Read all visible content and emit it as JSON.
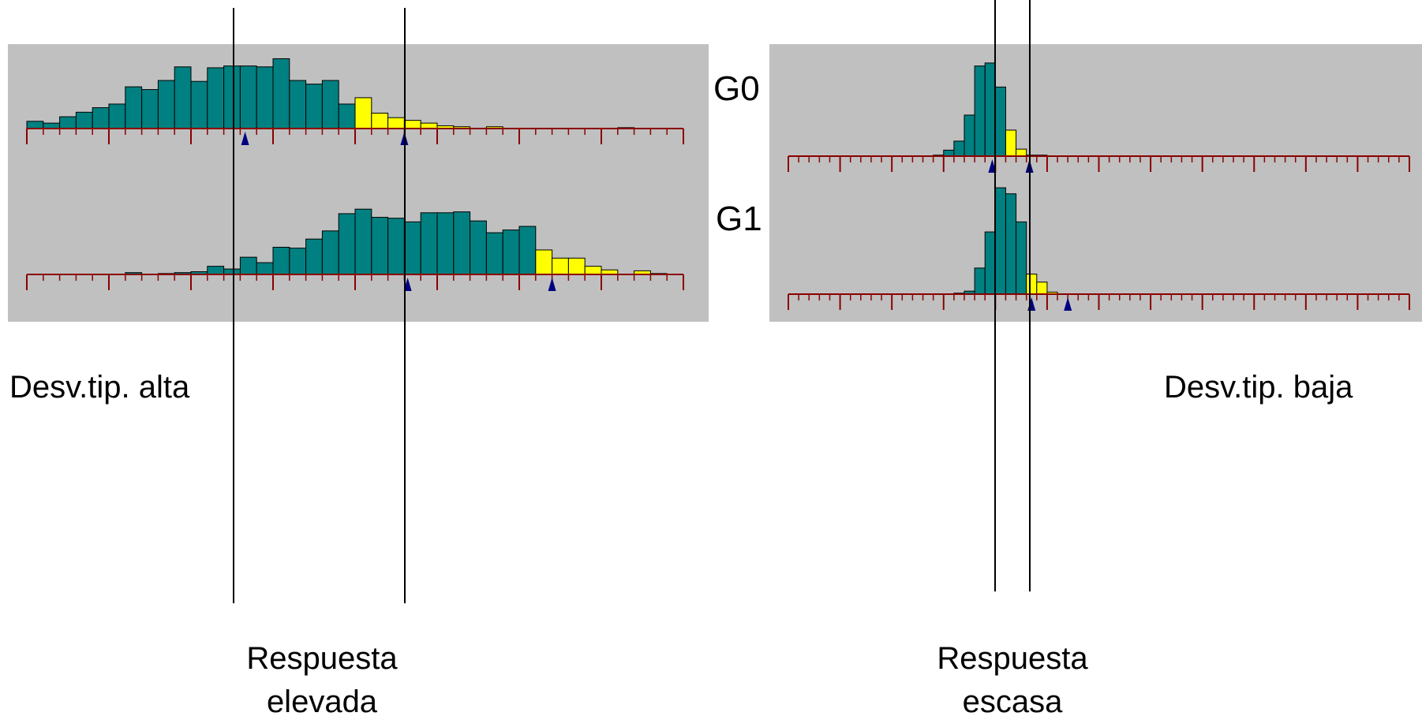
{
  "colors": {
    "panel_background": "#c0c0c0",
    "bar_main": "#008080",
    "bar_tail": "#ffff00",
    "bar_outline": "#000000",
    "axis": "#8b0000",
    "marker": "#000080",
    "reference_line": "#000000",
    "page_background": "#ffffff"
  },
  "labels": {
    "group_top": "G0",
    "group_bottom": "G1",
    "left_caption": "Desv.tip. alta",
    "right_caption": "Desv.tip. baja",
    "left_response_line1": "Respuesta",
    "left_response_line2": "elevada",
    "right_response_line1": "Respuesta",
    "right_response_line2": "escasa"
  },
  "chart_data": [
    {
      "type": "bar",
      "panel": "left",
      "group": "G0",
      "x_bins": 40,
      "values": [
        0.8,
        0.6,
        1.3,
        1.8,
        2.3,
        2.7,
        4.6,
        4.3,
        5.3,
        6.8,
        5.2,
        6.7,
        6.9,
        6.9,
        6.8,
        7.7,
        5.3,
        4.9,
        5.3,
        2.7,
        0.0,
        0.0,
        0.0,
        0.0,
        0.0,
        0.0,
        0.0,
        0.0,
        0.0,
        0.0,
        0.0,
        0.0,
        0.0,
        0.0,
        0.0,
        0.0,
        0.0,
        0.0,
        0.0,
        0.0
      ],
      "tail_values": [
        0.0,
        0.0,
        0.0,
        0.0,
        0.0,
        0.0,
        0.0,
        0.0,
        0.0,
        0.0,
        0.0,
        0.0,
        0.0,
        0.0,
        0.0,
        0.0,
        0.0,
        0.0,
        0.0,
        0.0,
        3.4,
        1.7,
        1.2,
        0.9,
        0.6,
        0.3,
        0.2,
        0.0,
        0.2,
        0.0,
        0.0,
        0.0,
        0.0,
        0.0,
        0.0,
        0.0,
        0.1,
        0.0,
        0.0,
        0.0
      ],
      "markers": [
        13.3,
        23.0
      ],
      "ylim": [
        0,
        8
      ]
    },
    {
      "type": "bar",
      "panel": "left",
      "group": "G1",
      "x_bins": 40,
      "values": [
        0.0,
        0.0,
        0.0,
        0.0,
        0.0,
        0.0,
        0.2,
        0.0,
        0.1,
        0.2,
        0.3,
        0.9,
        0.6,
        1.9,
        1.3,
        3.0,
        2.9,
        3.9,
        4.8,
        6.7,
        7.2,
        6.3,
        6.2,
        5.8,
        6.8,
        6.8,
        6.9,
        5.9,
        4.6,
        4.9,
        5.3,
        0.0,
        0.0,
        0.0,
        0.0,
        0.0,
        0.0,
        0.0,
        0.0,
        0.0
      ],
      "tail_values": [
        0.0,
        0.0,
        0.0,
        0.0,
        0.0,
        0.0,
        0.0,
        0.0,
        0.0,
        0.0,
        0.0,
        0.0,
        0.0,
        0.0,
        0.0,
        0.0,
        0.0,
        0.0,
        0.0,
        0.0,
        0.0,
        0.0,
        0.0,
        0.0,
        0.0,
        0.0,
        0.0,
        0.0,
        0.0,
        0.0,
        0.0,
        2.7,
        1.8,
        1.8,
        0.9,
        0.5,
        0.0,
        0.4,
        0.1,
        0.0
      ],
      "markers": [
        23.2,
        32.0
      ],
      "ylim": [
        0,
        8
      ]
    },
    {
      "type": "bar",
      "panel": "right",
      "group": "G0",
      "x_bins": 60,
      "values": [
        0,
        0,
        0,
        0,
        0,
        0,
        0,
        0,
        0,
        0,
        0,
        0,
        0,
        0,
        0.1,
        0.6,
        1.5,
        4.1,
        9.0,
        9.3,
        6.9,
        0,
        0,
        0,
        0,
        0,
        0,
        0,
        0,
        0,
        0,
        0,
        0,
        0,
        0,
        0,
        0,
        0,
        0,
        0,
        0,
        0,
        0,
        0,
        0,
        0,
        0,
        0,
        0,
        0,
        0,
        0,
        0,
        0,
        0,
        0,
        0,
        0,
        0,
        0
      ],
      "tail_values": [
        0,
        0,
        0,
        0,
        0,
        0,
        0,
        0,
        0,
        0,
        0,
        0,
        0,
        0,
        0,
        0,
        0,
        0,
        0,
        0,
        0,
        2.6,
        0.7,
        0.1,
        0.1,
        0,
        0,
        0,
        0,
        0,
        0,
        0,
        0,
        0,
        0,
        0,
        0,
        0,
        0,
        0,
        0,
        0,
        0,
        0,
        0,
        0,
        0,
        0,
        0,
        0,
        0,
        0,
        0,
        0,
        0,
        0,
        0,
        0,
        0,
        0
      ],
      "markers": [
        19.7,
        23.3
      ],
      "ylim": [
        0,
        10
      ]
    },
    {
      "type": "bar",
      "panel": "right",
      "group": "G1",
      "x_bins": 60,
      "values": [
        0,
        0,
        0,
        0,
        0,
        0,
        0,
        0,
        0,
        0,
        0,
        0,
        0,
        0,
        0,
        0,
        0.1,
        0.3,
        2.6,
        6.2,
        10.6,
        10.0,
        7.2,
        0,
        0,
        0,
        0,
        0,
        0,
        0,
        0,
        0,
        0,
        0,
        0,
        0,
        0,
        0,
        0,
        0,
        0,
        0,
        0,
        0,
        0,
        0,
        0,
        0,
        0,
        0,
        0,
        0,
        0,
        0,
        0,
        0,
        0,
        0
      ],
      "tail_values": [
        0,
        0,
        0,
        0,
        0,
        0,
        0,
        0,
        0,
        0,
        0,
        0,
        0,
        0,
        0,
        0,
        0,
        0,
        0,
        0,
        0,
        0,
        0,
        2.0,
        1.2,
        0.2,
        0,
        0,
        0,
        0,
        0,
        0,
        0,
        0,
        0,
        0,
        0,
        0,
        0,
        0,
        0,
        0,
        0,
        0,
        0,
        0,
        0,
        0,
        0,
        0,
        0,
        0,
        0,
        0,
        0,
        0,
        0,
        0
      ],
      "markers": [
        23.5,
        27.0
      ],
      "ylim": [
        0,
        11
      ]
    }
  ]
}
